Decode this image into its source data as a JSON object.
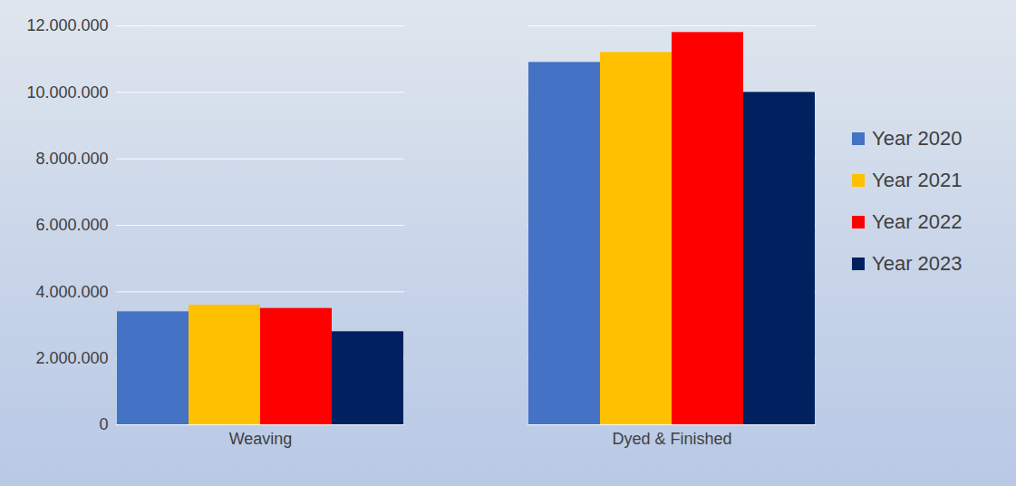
{
  "chart_data": {
    "type": "bar",
    "categories": [
      "Weaving",
      "Dyed & Finished"
    ],
    "series": [
      {
        "name": "Year 2020",
        "color": "#4472c4",
        "values": [
          3400000,
          10900000
        ]
      },
      {
        "name": "Year 2021",
        "color": "#ffc000",
        "values": [
          3600000,
          11200000
        ]
      },
      {
        "name": "Year 2022",
        "color": "#ff0000",
        "values": [
          3500000,
          11800000
        ]
      },
      {
        "name": "Year 2023",
        "color": "#002060",
        "values": [
          2800000,
          10000000
        ]
      }
    ],
    "ylim": [
      0,
      12000000
    ],
    "yticks": [
      0,
      {
        "value": 2000000,
        "label": "2.000.000"
      },
      {
        "value": 4000000,
        "label": "4.000.000"
      },
      {
        "value": 6000000,
        "label": "6.000.000"
      },
      {
        "value": 8000000,
        "label": "8.000.000"
      },
      {
        "value": 10000000,
        "label": "10.000.000"
      },
      {
        "value": 12000000,
        "label": "12.000.000"
      }
    ],
    "grid": true,
    "legend": "right"
  }
}
